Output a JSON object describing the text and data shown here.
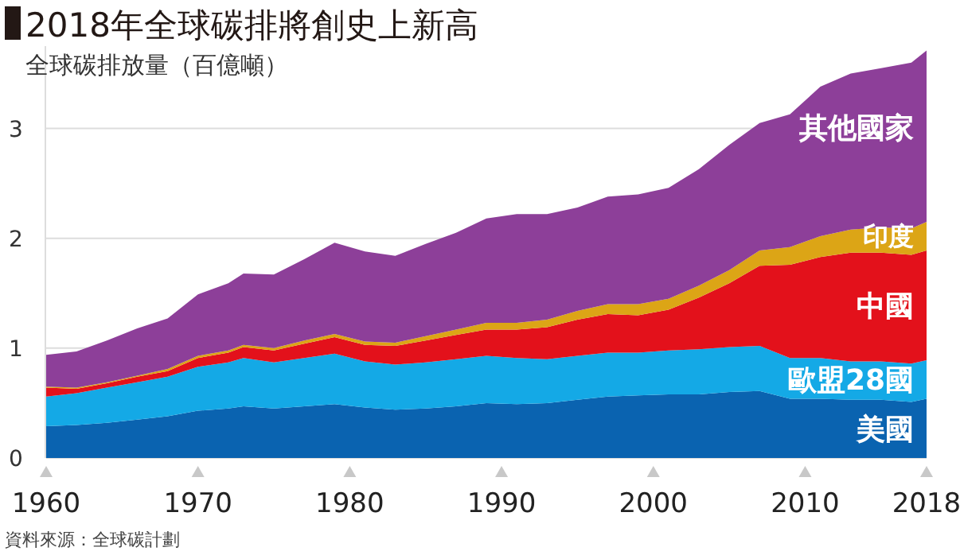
{
  "chart_data": {
    "type": "area",
    "stacked": true,
    "title": "2018年全球碳排將創史上新高",
    "subtitle": "全球碳排放量（百億噸）",
    "annotations": [
      "資料來源：全球碳計劃"
    ],
    "x": [
      1960,
      1962,
      1964,
      1966,
      1968,
      1970,
      1972,
      1973,
      1975,
      1977,
      1979,
      1981,
      1983,
      1985,
      1987,
      1989,
      1991,
      1993,
      1995,
      1997,
      1999,
      2001,
      2003,
      2005,
      2007,
      2009,
      2011,
      2013,
      2015,
      2017,
      2018
    ],
    "xlim": [
      1960,
      2018
    ],
    "xticks": [
      1960,
      1970,
      1980,
      1990,
      2000,
      2010,
      2018
    ],
    "ylim": [
      0,
      3.75
    ],
    "yticks": [
      0,
      1,
      2,
      3
    ],
    "grid": "y",
    "series": [
      {
        "name": "美國",
        "color": "#0a63b0",
        "values": [
          0.29,
          0.3,
          0.32,
          0.35,
          0.38,
          0.43,
          0.45,
          0.47,
          0.45,
          0.47,
          0.49,
          0.46,
          0.44,
          0.45,
          0.47,
          0.5,
          0.49,
          0.5,
          0.53,
          0.56,
          0.57,
          0.58,
          0.58,
          0.6,
          0.61,
          0.54,
          0.54,
          0.53,
          0.53,
          0.51,
          0.54
        ]
      },
      {
        "name": "歐盟28國",
        "color": "#14a9e6",
        "values": [
          0.27,
          0.29,
          0.32,
          0.34,
          0.36,
          0.4,
          0.42,
          0.44,
          0.42,
          0.44,
          0.46,
          0.42,
          0.41,
          0.42,
          0.43,
          0.43,
          0.42,
          0.4,
          0.4,
          0.4,
          0.39,
          0.4,
          0.41,
          0.41,
          0.41,
          0.37,
          0.37,
          0.35,
          0.35,
          0.35,
          0.35
        ]
      },
      {
        "name": "中國",
        "color": "#e3111b",
        "values": [
          0.08,
          0.04,
          0.04,
          0.05,
          0.05,
          0.08,
          0.09,
          0.1,
          0.11,
          0.13,
          0.15,
          0.15,
          0.17,
          0.2,
          0.22,
          0.24,
          0.26,
          0.29,
          0.33,
          0.35,
          0.34,
          0.37,
          0.47,
          0.58,
          0.73,
          0.85,
          0.92,
          0.99,
          0.99,
          0.99,
          1.0
        ]
      },
      {
        "name": "印度",
        "color": "#dca516",
        "values": [
          0.01,
          0.01,
          0.01,
          0.01,
          0.02,
          0.02,
          0.02,
          0.02,
          0.02,
          0.03,
          0.03,
          0.03,
          0.03,
          0.04,
          0.05,
          0.06,
          0.06,
          0.07,
          0.08,
          0.09,
          0.1,
          0.1,
          0.11,
          0.12,
          0.14,
          0.16,
          0.19,
          0.21,
          0.23,
          0.24,
          0.26
        ]
      },
      {
        "name": "其他國家",
        "color": "#8d3f99",
        "values": [
          0.29,
          0.33,
          0.38,
          0.43,
          0.46,
          0.56,
          0.61,
          0.65,
          0.67,
          0.74,
          0.83,
          0.82,
          0.79,
          0.84,
          0.88,
          0.95,
          0.99,
          0.96,
          0.94,
          0.98,
          1.0,
          1.01,
          1.06,
          1.14,
          1.16,
          1.21,
          1.36,
          1.42,
          1.45,
          1.51,
          1.56
        ]
      }
    ]
  }
}
